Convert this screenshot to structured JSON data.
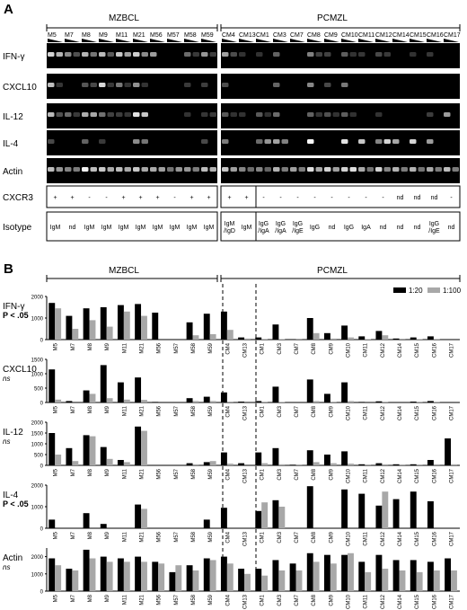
{
  "panel_a": {
    "label": "A",
    "groups": [
      "MZBCL",
      "PCMZL"
    ],
    "lanes_mzbcl": [
      "M5",
      "M7",
      "M8",
      "M9",
      "M11",
      "M21",
      "M56",
      "M57",
      "M58",
      "M59"
    ],
    "lanes_pcmzl": [
      "CM4",
      "CM13",
      "CM1",
      "CM3",
      "CM7",
      "CM8",
      "CM9",
      "CM10",
      "CM11",
      "CM12",
      "CM14",
      "CM15",
      "CM16",
      "CM17"
    ],
    "gel_rows": [
      "IFN-γ",
      "CXCL10",
      "IL-12",
      "IL-4",
      "Actin"
    ],
    "cxcr3_label": "CXCR3",
    "cxcr3": [
      "+",
      "+",
      "-",
      "-",
      "+",
      "+",
      "+",
      "-",
      "+",
      "+",
      "+",
      "+",
      "-",
      "-",
      "-",
      "-",
      "-",
      "-",
      "-",
      "-",
      "nd",
      "nd",
      "nd",
      "-"
    ],
    "isotype_label": "Isotype",
    "isotype": [
      "IgM",
      "nd",
      "IgM",
      "IgM",
      "IgM",
      "IgM",
      "IgM",
      "IgM",
      "IgM",
      "IgM",
      "IgM\n/IgD",
      "IgM",
      "IgG\n/IgA",
      "IgG\n/IgA",
      "IgG\n/IgE",
      "IgG",
      "nd",
      "IgG",
      "IgA",
      "nd",
      "nd",
      "nd",
      "IgG\n/IgE",
      "nd"
    ]
  },
  "panel_b": {
    "label": "B",
    "groups": [
      "MZBCL",
      "PCMZL"
    ],
    "legend": [
      {
        "name": "1:20",
        "color": "#000000"
      },
      {
        "name": "1:100",
        "color": "#a8a8a8"
      }
    ]
  },
  "chart_data": {
    "type": "bar",
    "categories": [
      "M5",
      "M7",
      "M8",
      "M9",
      "M11",
      "M21",
      "M56",
      "M57",
      "M58",
      "M59",
      "CM4",
      "CM13",
      "CM1",
      "CM3",
      "CM7",
      "CM8",
      "CM9",
      "CM10",
      "CM11",
      "CM12",
      "CM14",
      "CM15",
      "CM16",
      "CM17"
    ],
    "panels": [
      {
        "label": "IFN-γ",
        "stat": "P < .05",
        "yticks": [
          0,
          1000,
          2000
        ],
        "ylim": [
          0,
          2000
        ],
        "series": [
          {
            "name": "1:20",
            "values": [
              1700,
              1100,
              1450,
              1500,
              1600,
              1650,
              1250,
              0,
              800,
              1200,
              1300,
              100,
              100,
              700,
              20,
              1000,
              300,
              650,
              150,
              400,
              50,
              100,
              150,
              10
            ]
          },
          {
            "name": "1:100",
            "values": [
              1450,
              500,
              900,
              600,
              1300,
              1100,
              0,
              0,
              200,
              250,
              450,
              50,
              30,
              20,
              10,
              300,
              50,
              100,
              20,
              200,
              10,
              20,
              30,
              0
            ]
          }
        ]
      },
      {
        "label": "CXCL10",
        "stat": "ns",
        "yticks": [
          0,
          500,
          1000,
          1500
        ],
        "ylim": [
          0,
          1500
        ],
        "series": [
          {
            "name": "1:20",
            "values": [
              1150,
              50,
              420,
              1300,
              700,
              870,
              20,
              0,
              150,
              200,
              350,
              30,
              50,
              550,
              10,
              800,
              300,
              700,
              20,
              40,
              10,
              30,
              50,
              0
            ]
          },
          {
            "name": "1:100",
            "values": [
              100,
              0,
              300,
              150,
              100,
              90,
              0,
              0,
              50,
              50,
              30,
              0,
              10,
              20,
              0,
              50,
              10,
              50,
              0,
              10,
              0,
              10,
              10,
              0
            ]
          }
        ]
      },
      {
        "label": "IL-12",
        "stat": "ns",
        "yticks": [
          0,
          500,
          1000,
          1500,
          2000
        ],
        "ylim": [
          0,
          2000
        ],
        "series": [
          {
            "name": "1:20",
            "values": [
              1500,
              800,
              1400,
              850,
              250,
              1800,
              0,
              0,
              100,
              150,
              600,
              100,
              600,
              800,
              30,
              700,
              500,
              650,
              50,
              100,
              50,
              50,
              250,
              1250
            ]
          },
          {
            "name": "1:100",
            "values": [
              500,
              200,
              1350,
              300,
              150,
              1600,
              0,
              0,
              50,
              200,
              80,
              0,
              100,
              50,
              10,
              150,
              100,
              80,
              10,
              50,
              10,
              10,
              50,
              50
            ]
          }
        ]
      },
      {
        "label": "IL-4",
        "stat": "P < .05",
        "yticks": [
          0,
          1000,
          2000
        ],
        "ylim": [
          0,
          2000
        ],
        "series": [
          {
            "name": "1:20",
            "values": [
              400,
              0,
              700,
              200,
              0,
              1100,
              0,
              0,
              0,
              400,
              950,
              0,
              800,
              1300,
              0,
              1950,
              0,
              1800,
              1600,
              1050,
              1350,
              1700,
              1250,
              0
            ]
          },
          {
            "name": "1:100",
            "values": [
              0,
              0,
              0,
              0,
              0,
              900,
              0,
              0,
              0,
              0,
              0,
              0,
              1200,
              1000,
              0,
              0,
              0,
              0,
              0,
              1700,
              0,
              0,
              0,
              0
            ]
          }
        ]
      },
      {
        "label": "Actin",
        "stat": "ns",
        "yticks": [
          0,
          1000,
          2000
        ],
        "ylim": [
          0,
          2500
        ],
        "series": [
          {
            "name": "1:20",
            "values": [
              1900,
              1300,
              2400,
              2000,
              1900,
              2000,
              1700,
              1100,
              1500,
              1900,
              2000,
              1300,
              1300,
              1800,
              1600,
              2200,
              2100,
              2100,
              1700,
              2100,
              1800,
              1800,
              1700,
              1900
            ]
          },
          {
            "name": "1:100",
            "values": [
              1500,
              1200,
              1900,
              1700,
              1700,
              1700,
              1600,
              1500,
              1200,
              1800,
              1600,
              1000,
              900,
              1200,
              1200,
              1700,
              1600,
              2200,
              1100,
              1300,
              1200,
              1100,
              1200,
              1200
            ]
          }
        ]
      }
    ]
  }
}
